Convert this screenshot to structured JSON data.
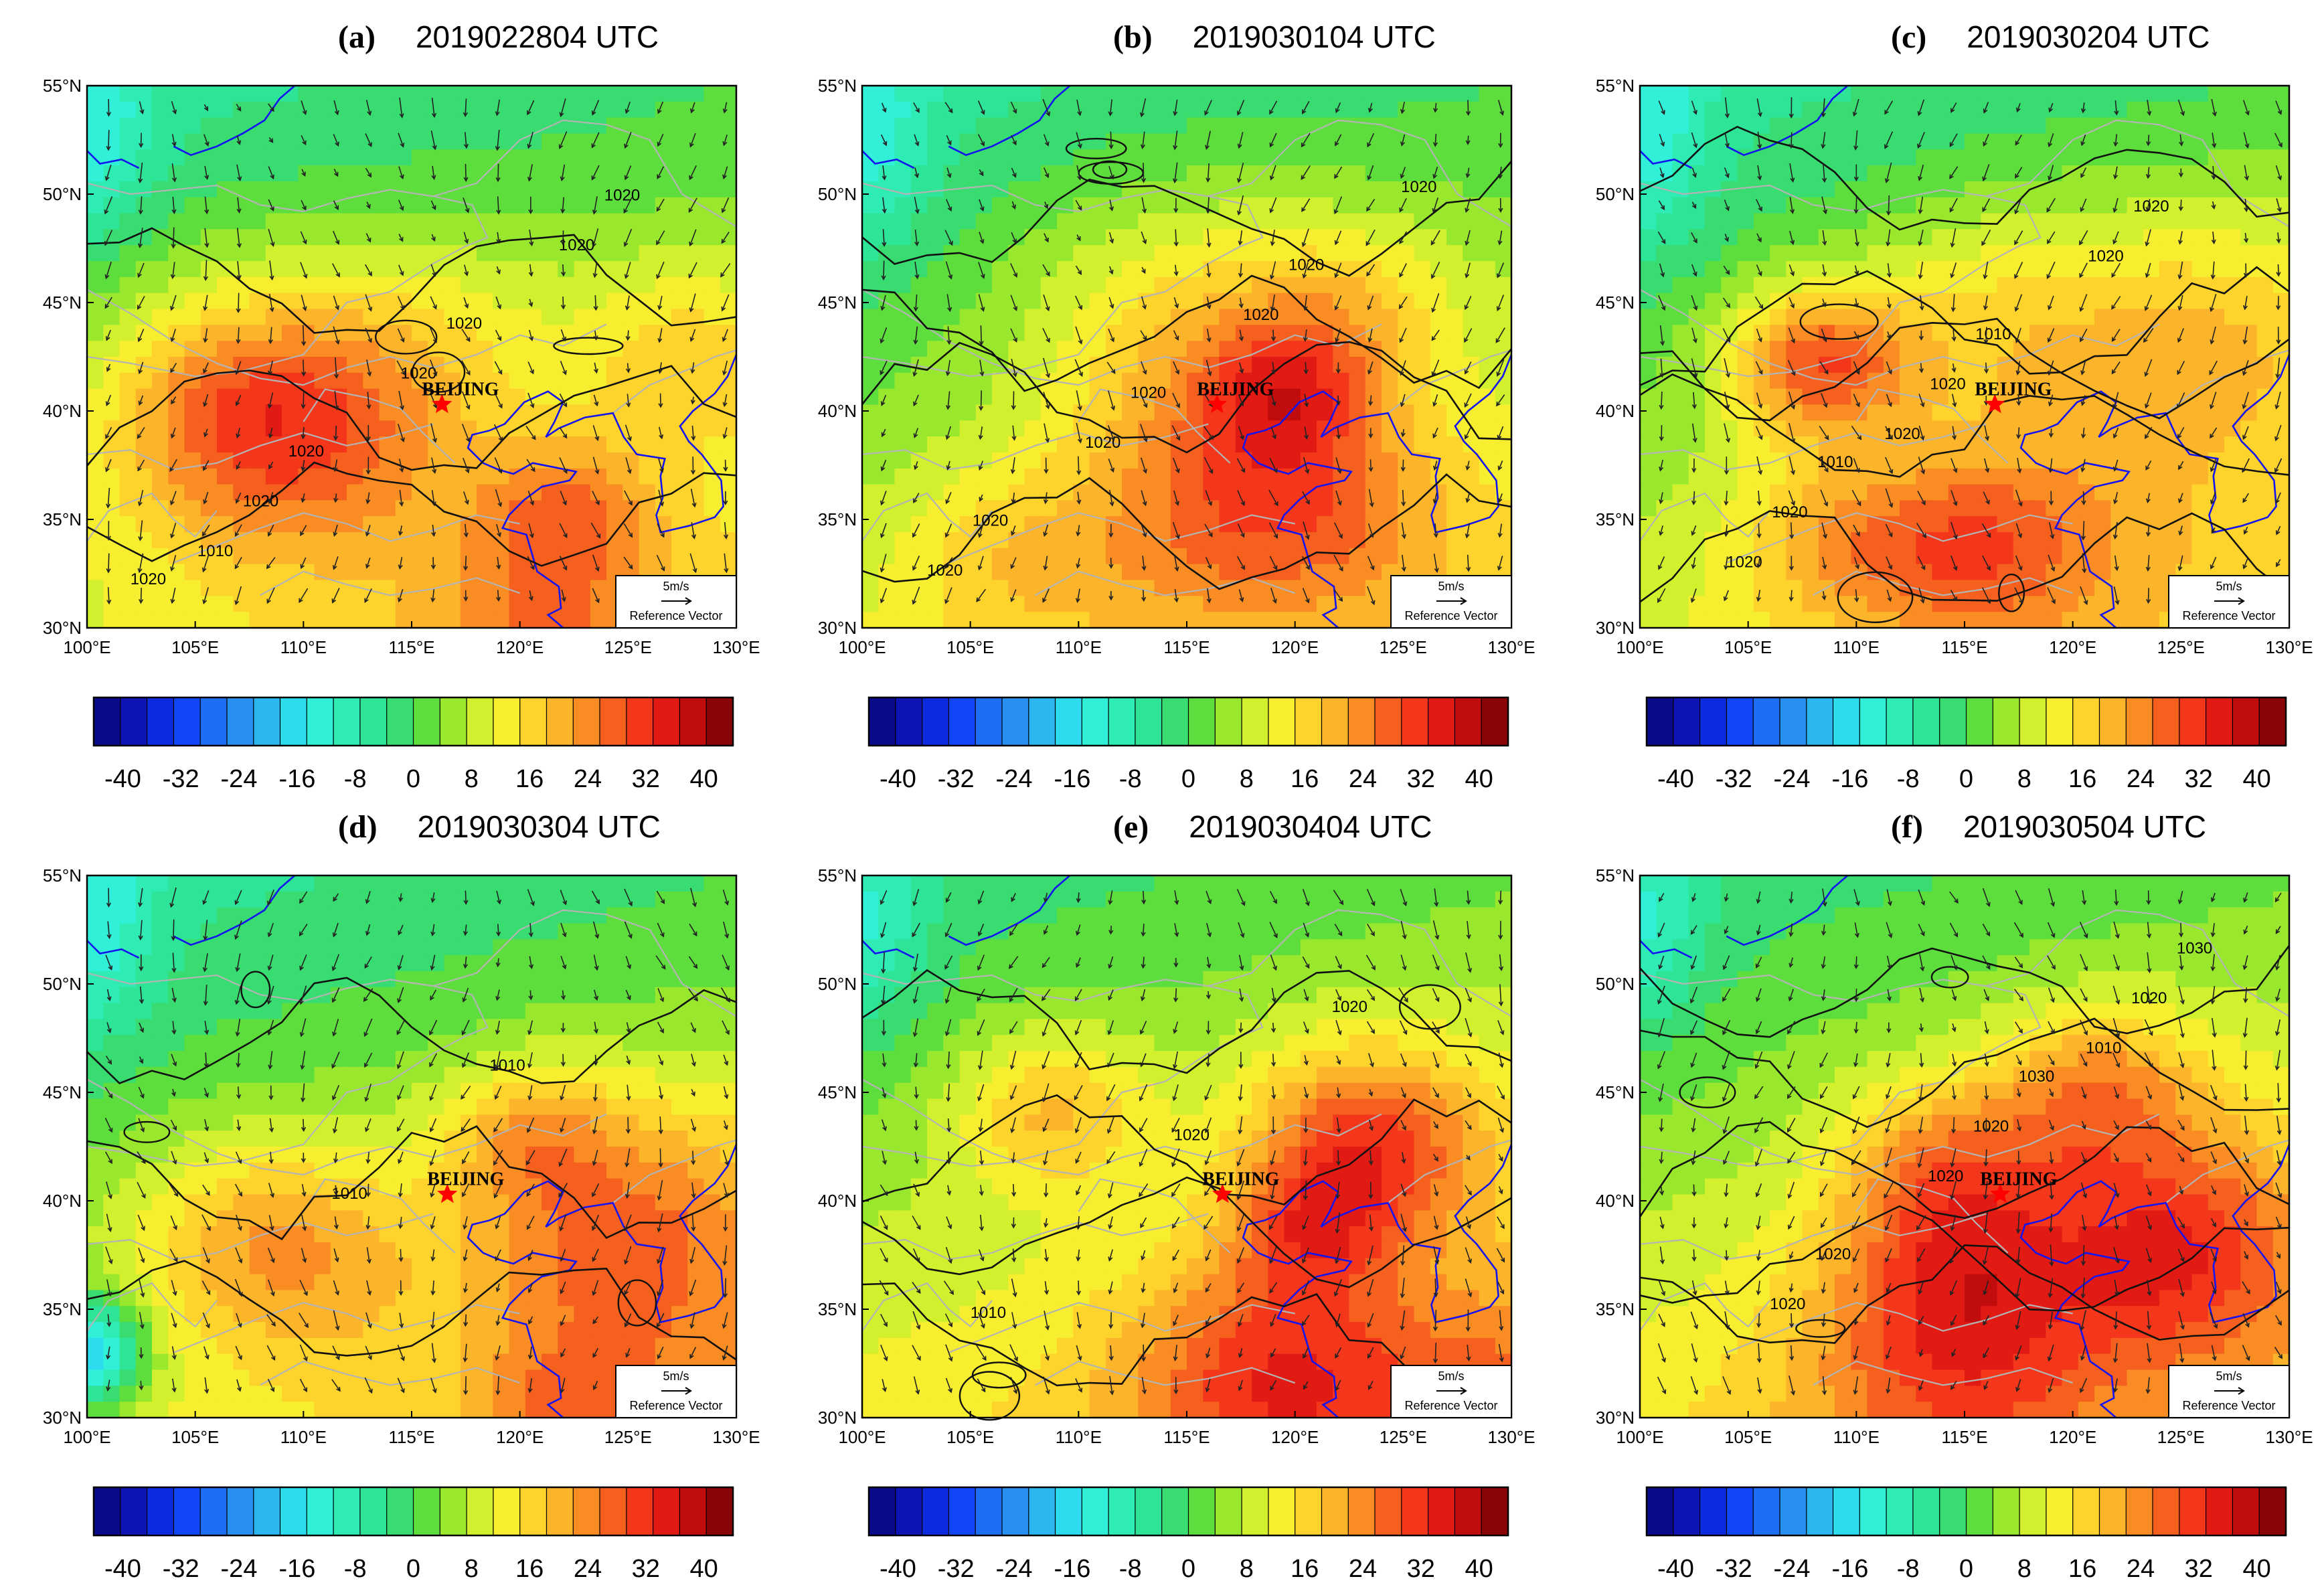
{
  "figure": {
    "panels": [
      {
        "label": "(a)",
        "date": "2019022804 UTC",
        "contour_labels": [
          "1020",
          "1020",
          "1020",
          "1020",
          "1020",
          "1020",
          "1020",
          "1010"
        ]
      },
      {
        "label": "(b)",
        "date": "2019030104 UTC",
        "contour_labels": [
          "1020",
          "1020",
          "1020",
          "1020",
          "1020",
          "1020",
          "1020"
        ]
      },
      {
        "label": "(c)",
        "date": "2019030204 UTC",
        "contour_labels": [
          "1010",
          "1010",
          "1020",
          "1020",
          "1020",
          "1020",
          "1020",
          "1020"
        ]
      },
      {
        "label": "(d)",
        "date": "2019030304 UTC",
        "contour_labels": [
          "1010",
          "1010"
        ]
      },
      {
        "label": "(e)",
        "date": "2019030404 UTC",
        "contour_labels": [
          "1020",
          "1020",
          "1010"
        ]
      },
      {
        "label": "(f)",
        "date": "2019030504 UTC",
        "contour_labels": [
          "1030",
          "1030",
          "1020",
          "1020",
          "1020",
          "1020",
          "1020",
          "1010"
        ]
      }
    ],
    "city": "BEIJING",
    "reference_vector": {
      "speed": "5m/s",
      "text": "Reference Vector"
    }
  },
  "chart_data": {
    "type": "map",
    "panel_count": 6,
    "layout": "2 rows x 3 columns",
    "lat_ticks": [
      "30°N",
      "35°N",
      "40°N",
      "45°N",
      "50°N",
      "55°N"
    ],
    "lon_ticks": [
      "100°E",
      "105°E",
      "110°E",
      "115°E",
      "120°E",
      "125°E",
      "130°E"
    ],
    "lat_range": [
      30,
      55
    ],
    "lon_range": [
      100,
      130
    ],
    "city_marker": {
      "name": "BEIJING",
      "lon": 116.4,
      "lat": 40.3,
      "color": "#ff0000",
      "symbol": "star"
    },
    "colorbar": {
      "ticks": [
        -40,
        -32,
        -24,
        -16,
        -8,
        0,
        8,
        16,
        24,
        32,
        40
      ],
      "tick_labels": [
        "-40",
        "-32",
        "-24",
        "-16",
        "-8",
        "0",
        "8",
        "16",
        "24",
        "32",
        "40"
      ],
      "range": [
        -44,
        44
      ],
      "colors": [
        "#0a0a8a",
        "#0e14b4",
        "#0c2ade",
        "#1046f6",
        "#1e6ef4",
        "#2890f0",
        "#2cb6f0",
        "#2edcf0",
        "#30f0d8",
        "#2eecb4",
        "#2ee496",
        "#38dc70",
        "#5ede3c",
        "#9ae82e",
        "#d2f02e",
        "#f6ee2e",
        "#fed42c",
        "#fcb42a",
        "#fa8c24",
        "#f6601e",
        "#f4361a",
        "#e21a14",
        "#c00c0c",
        "#8a0606"
      ]
    },
    "contour_interval_hpa": 10,
    "vector_reference_speed_ms": 5,
    "colors": {
      "coastline": "#1414f0",
      "boundary": "#b4b4b4",
      "contour": "#111111",
      "vector": "#222222"
    }
  }
}
